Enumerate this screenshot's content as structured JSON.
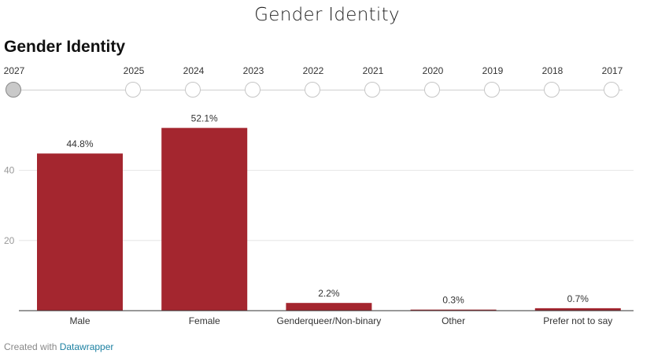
{
  "page": {
    "title": "Gender Identity"
  },
  "chart_title": "Gender Identity",
  "timeline": {
    "years": [
      "2027",
      "2025",
      "2024",
      "2023",
      "2022",
      "2021",
      "2020",
      "2019",
      "2018",
      "2017"
    ],
    "selected": "2027"
  },
  "chart_data": {
    "type": "bar",
    "title": "Gender Identity",
    "categories": [
      "Male",
      "Female",
      "Genderqueer/Non-binary",
      "Other",
      "Prefer not to say"
    ],
    "values": [
      44.8,
      52.1,
      2.2,
      0.3,
      0.7
    ],
    "value_labels": [
      "44.8%",
      "52.1%",
      "2.2%",
      "0.3%",
      "0.7%"
    ],
    "ylim": [
      0,
      55
    ],
    "yticks": [
      20,
      40
    ],
    "grid": true,
    "bar_color": "#a4262f"
  },
  "footer": {
    "prefix": "Created with ",
    "link_label": "Datawrapper"
  }
}
